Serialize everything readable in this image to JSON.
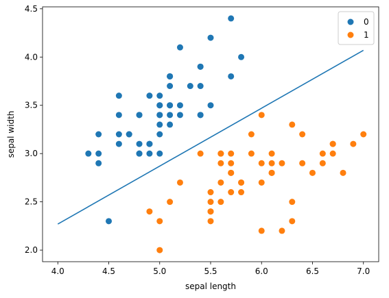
{
  "chart_data": {
    "type": "scatter",
    "title": "",
    "xlabel": "sepal length",
    "ylabel": "sepal width",
    "xlim": [
      3.85,
      7.15
    ],
    "ylim": [
      1.88,
      4.52
    ],
    "xticks": [
      "4.0",
      "4.5",
      "5.0",
      "5.5",
      "6.0",
      "6.5",
      "7.0"
    ],
    "yticks": [
      "2.0",
      "2.5",
      "3.0",
      "3.5",
      "4.0",
      "4.5"
    ],
    "grid": false,
    "legend_position": "top-right",
    "series": [
      {
        "name": "0",
        "color": "#1f77b4",
        "points": [
          [
            5.1,
            3.5
          ],
          [
            4.9,
            3.0
          ],
          [
            4.7,
            3.2
          ],
          [
            4.6,
            3.1
          ],
          [
            5.0,
            3.6
          ],
          [
            5.4,
            3.9
          ],
          [
            4.6,
            3.4
          ],
          [
            5.0,
            3.4
          ],
          [
            4.4,
            2.9
          ],
          [
            4.9,
            3.1
          ],
          [
            5.4,
            3.7
          ],
          [
            4.8,
            3.4
          ],
          [
            4.8,
            3.0
          ],
          [
            4.3,
            3.0
          ],
          [
            5.8,
            4.0
          ],
          [
            5.7,
            4.4
          ],
          [
            5.4,
            3.9
          ],
          [
            5.1,
            3.5
          ],
          [
            5.7,
            3.8
          ],
          [
            5.1,
            3.8
          ],
          [
            5.4,
            3.4
          ],
          [
            5.1,
            3.7
          ],
          [
            4.6,
            3.6
          ],
          [
            5.1,
            3.3
          ],
          [
            4.8,
            3.4
          ],
          [
            5.0,
            3.0
          ],
          [
            5.0,
            3.4
          ],
          [
            5.2,
            3.5
          ],
          [
            5.2,
            3.4
          ],
          [
            4.7,
            3.2
          ],
          [
            4.8,
            3.1
          ],
          [
            5.4,
            3.4
          ],
          [
            5.2,
            4.1
          ],
          [
            5.5,
            4.2
          ],
          [
            4.9,
            3.1
          ],
          [
            5.0,
            3.2
          ],
          [
            5.5,
            3.5
          ],
          [
            4.9,
            3.6
          ],
          [
            4.4,
            3.0
          ],
          [
            5.1,
            3.4
          ],
          [
            5.0,
            3.5
          ],
          [
            4.5,
            2.3
          ],
          [
            4.4,
            3.2
          ],
          [
            5.0,
            3.5
          ],
          [
            5.1,
            3.8
          ],
          [
            4.8,
            3.0
          ],
          [
            5.1,
            3.8
          ],
          [
            4.6,
            3.2
          ],
          [
            5.3,
            3.7
          ],
          [
            5.0,
            3.3
          ]
        ]
      },
      {
        "name": "1",
        "color": "#ff7f0e",
        "points": [
          [
            7.0,
            3.2
          ],
          [
            6.4,
            3.2
          ],
          [
            6.9,
            3.1
          ],
          [
            5.5,
            2.3
          ],
          [
            6.5,
            2.8
          ],
          [
            5.7,
            2.8
          ],
          [
            6.3,
            3.3
          ],
          [
            4.9,
            2.4
          ],
          [
            6.6,
            2.9
          ],
          [
            5.2,
            2.7
          ],
          [
            5.0,
            2.0
          ],
          [
            5.9,
            3.0
          ],
          [
            6.0,
            2.2
          ],
          [
            6.1,
            2.9
          ],
          [
            5.6,
            2.9
          ],
          [
            6.7,
            3.1
          ],
          [
            5.6,
            3.0
          ],
          [
            5.8,
            2.7
          ],
          [
            6.2,
            2.2
          ],
          [
            5.6,
            2.5
          ],
          [
            5.9,
            3.2
          ],
          [
            6.1,
            2.8
          ],
          [
            6.3,
            2.5
          ],
          [
            6.1,
            2.8
          ],
          [
            6.4,
            2.9
          ],
          [
            6.6,
            3.0
          ],
          [
            6.8,
            2.8
          ],
          [
            6.7,
            3.0
          ],
          [
            6.0,
            2.9
          ],
          [
            5.7,
            2.6
          ],
          [
            5.5,
            2.4
          ],
          [
            5.5,
            2.4
          ],
          [
            5.8,
            2.7
          ],
          [
            6.0,
            2.7
          ],
          [
            5.4,
            3.0
          ],
          [
            6.0,
            3.4
          ],
          [
            6.7,
            3.1
          ],
          [
            6.3,
            2.3
          ],
          [
            5.6,
            3.0
          ],
          [
            5.5,
            2.5
          ],
          [
            5.5,
            2.6
          ],
          [
            6.1,
            3.0
          ],
          [
            5.8,
            2.6
          ],
          [
            5.0,
            2.3
          ],
          [
            5.6,
            2.7
          ],
          [
            5.7,
            3.0
          ],
          [
            5.7,
            2.9
          ],
          [
            6.2,
            2.9
          ],
          [
            5.1,
            2.5
          ],
          [
            5.7,
            2.8
          ]
        ]
      }
    ],
    "decision_line": {
      "color": "#1f77b4",
      "points": [
        [
          4.0,
          2.27
        ],
        [
          7.0,
          4.07
        ]
      ]
    }
  }
}
